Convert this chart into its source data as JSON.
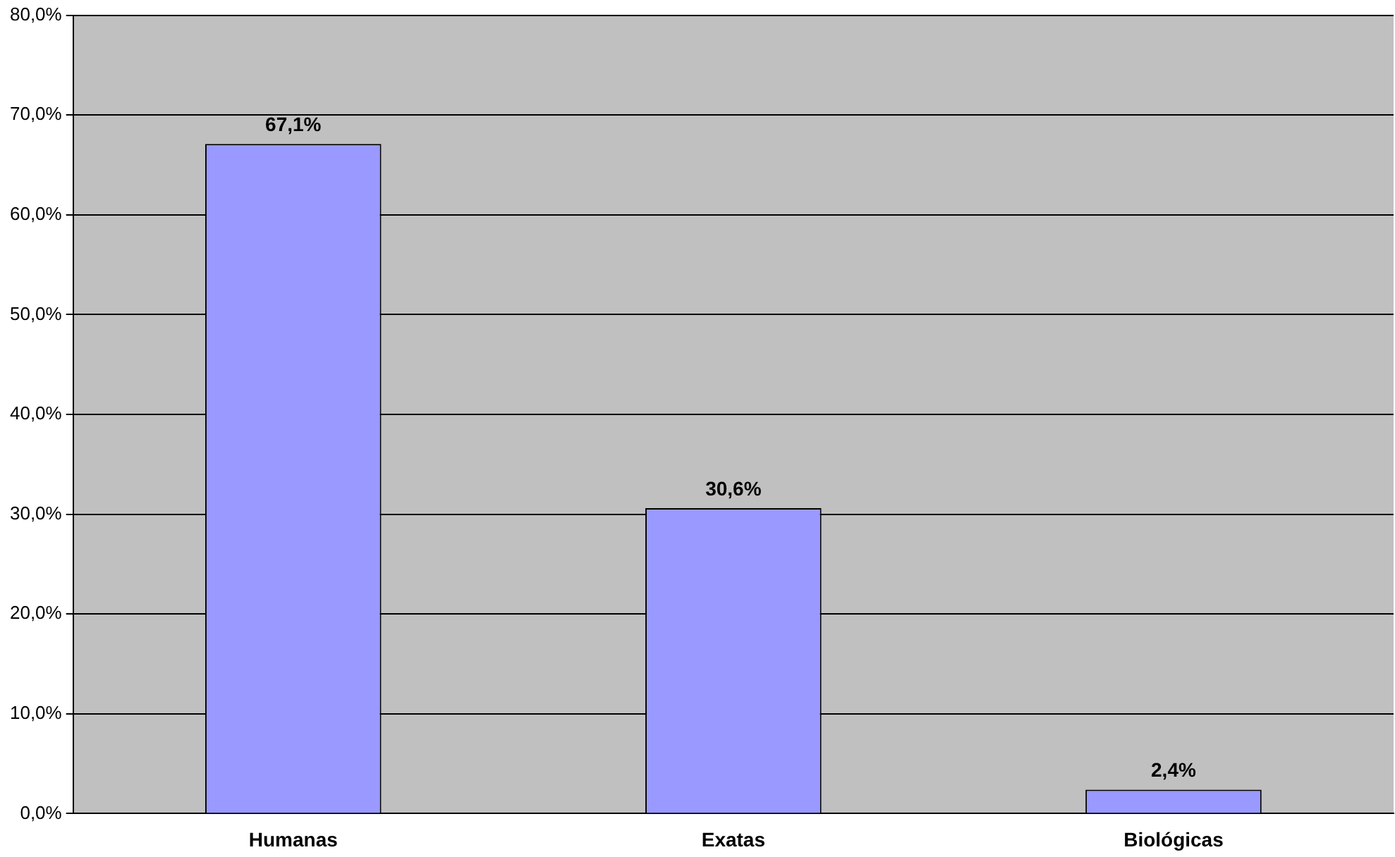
{
  "chart_data": {
    "type": "bar",
    "categories": [
      "Humanas",
      "Exatas",
      "Biológicas"
    ],
    "values": [
      67.1,
      30.6,
      2.4
    ],
    "color": "#9999ff",
    "value_labels": [
      "67,1%",
      "30,6%",
      "2,4%"
    ],
    "ylim": [
      0,
      80
    ],
    "yticks": [
      {
        "value": 0,
        "label": "0,0%"
      },
      {
        "value": 10,
        "label": "10,0%"
      },
      {
        "value": 20,
        "label": "20,0%"
      },
      {
        "value": 30,
        "label": "30,0%"
      },
      {
        "value": 40,
        "label": "40,0%"
      },
      {
        "value": 50,
        "label": "50,0%"
      },
      {
        "value": 60,
        "label": "60,0%"
      },
      {
        "value": 70,
        "label": "70,0%"
      },
      {
        "value": 80,
        "label": "80,0%"
      }
    ],
    "grid": "y",
    "legend": false
  }
}
